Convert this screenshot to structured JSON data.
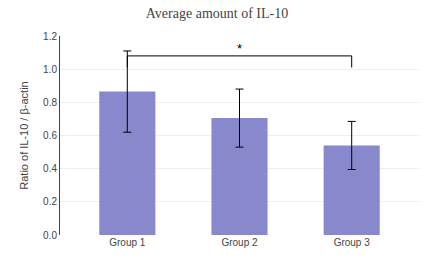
{
  "chart_data": {
    "type": "bar",
    "title": "Average amount of IL-10",
    "ylabel": "Ratio of IL-10 / β-actin",
    "categories": [
      "Group 1",
      "Group 2",
      "Group 3"
    ],
    "values": [
      0.865,
      0.705,
      0.54
    ],
    "errors": [
      0.245,
      0.175,
      0.145
    ],
    "color": "#8888CC",
    "ylim": [
      0,
      1.2
    ],
    "yticks": [
      {
        "value": 0,
        "label": "0.0"
      },
      0.2,
      0.4,
      0.6,
      0.8,
      {
        "value": 1.0,
        "label": "1.0"
      },
      1.2
    ],
    "grid": true,
    "annotations": [
      {
        "text": "*",
        "from": "Group 1",
        "to": "Group 3",
        "y": 1.08,
        "y_low": 1.01
      }
    ]
  }
}
